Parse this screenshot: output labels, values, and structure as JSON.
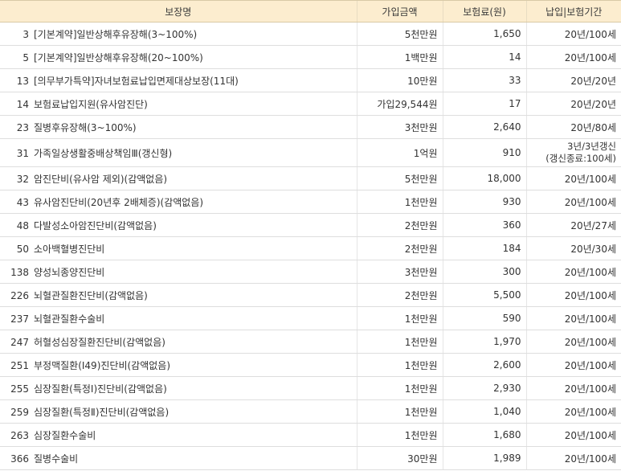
{
  "headers": {
    "name": "보장명",
    "amount": "가입금액",
    "premium": "보험료(원)",
    "period": "납입|보험기간"
  },
  "rows": [
    {
      "no": "3",
      "name": "[기본계약]일반상해후유장해(3~100%)",
      "amount": "5천만원",
      "premium": "1,650",
      "period": "20년/100세"
    },
    {
      "no": "5",
      "name": "[기본계약]일반상해후유장해(20~100%)",
      "amount": "1백만원",
      "premium": "14",
      "period": "20년/100세"
    },
    {
      "no": "13",
      "name": "[의무부가특약]자녀보험료납입면제대상보장(11대)",
      "amount": "10만원",
      "premium": "33",
      "period": "20년/20년"
    },
    {
      "no": "14",
      "name": "보험료납입지원(유사암진단)",
      "amount": "가입29,544원",
      "premium": "17",
      "period": "20년/20년"
    },
    {
      "no": "23",
      "name": "질병후유장해(3~100%)",
      "amount": "3천만원",
      "premium": "2,640",
      "period": "20년/80세"
    },
    {
      "no": "31",
      "name": "가족일상생활중배상책임Ⅲ(갱신형)",
      "amount": "1억원",
      "premium": "910",
      "period_line1": "3년/3년갱신",
      "period_line2": "(갱신종료:100세)"
    },
    {
      "no": "32",
      "name": "암진단비(유사암 제외)(감액없음)",
      "amount": "5천만원",
      "premium": "18,000",
      "period": "20년/100세"
    },
    {
      "no": "43",
      "name": "유사암진단비(20년후 2배체증)(감액없음)",
      "amount": "1천만원",
      "premium": "930",
      "period": "20년/100세"
    },
    {
      "no": "48",
      "name": "다발성소아암진단비(감액없음)",
      "amount": "2천만원",
      "premium": "360",
      "period": "20년/27세"
    },
    {
      "no": "50",
      "name": "소아백혈병진단비",
      "amount": "2천만원",
      "premium": "184",
      "period": "20년/30세"
    },
    {
      "no": "138",
      "name": "양성뇌종양진단비",
      "amount": "3천만원",
      "premium": "300",
      "period": "20년/100세"
    },
    {
      "no": "226",
      "name": "뇌혈관질환진단비(감액없음)",
      "amount": "2천만원",
      "premium": "5,500",
      "period": "20년/100세"
    },
    {
      "no": "237",
      "name": "뇌혈관질환수술비",
      "amount": "1천만원",
      "premium": "590",
      "period": "20년/100세"
    },
    {
      "no": "247",
      "name": "허혈성심장질환진단비(감액없음)",
      "amount": "1천만원",
      "premium": "1,970",
      "period": "20년/100세"
    },
    {
      "no": "251",
      "name": "부정맥질환(Ⅰ49)진단비(감액없음)",
      "amount": "1천만원",
      "premium": "2,600",
      "period": "20년/100세"
    },
    {
      "no": "255",
      "name": "심장질환(특정Ⅰ)진단비(감액없음)",
      "amount": "1천만원",
      "premium": "2,930",
      "period": "20년/100세"
    },
    {
      "no": "259",
      "name": "심장질환(특정Ⅱ)진단비(감액없음)",
      "amount": "1천만원",
      "premium": "1,040",
      "period": "20년/100세"
    },
    {
      "no": "263",
      "name": "심장질환수술비",
      "amount": "1천만원",
      "premium": "1,680",
      "period": "20년/100세"
    },
    {
      "no": "366",
      "name": "질병수술비",
      "amount": "30만원",
      "premium": "1,989",
      "period": "20년/100세"
    }
  ]
}
